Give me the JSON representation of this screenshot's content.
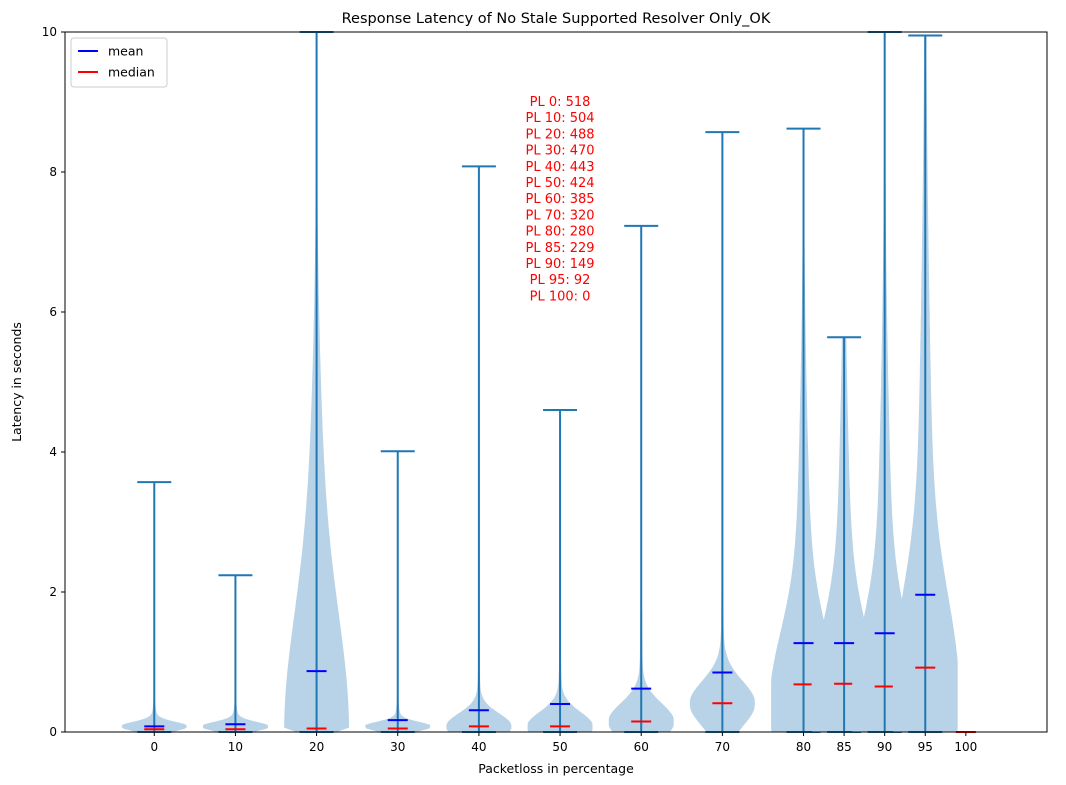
{
  "chart_data": {
    "type": "violin",
    "title": "Response Latency of No Stale Supported Resolver Only_OK",
    "xlabel": "Packetloss in percentage",
    "ylabel": "Latency in seconds",
    "ylim": [
      0,
      10
    ],
    "yticks": [
      0,
      2,
      4,
      6,
      8,
      10
    ],
    "legend": {
      "placement": "top-left",
      "entries": [
        {
          "name": "mean",
          "color": "#0000ff"
        },
        {
          "name": "median",
          "color": "#ff0000"
        }
      ]
    },
    "colors": {
      "body": "#b8d3e7",
      "stem": "#1f77b4",
      "mean": "#0000ff",
      "median": "#ff0000"
    },
    "groups": [
      {
        "label": "0",
        "x": 0,
        "min": 0.0,
        "max": 3.57,
        "mean": 0.08,
        "median": 0.04,
        "width": 0.8,
        "shape": "bulb"
      },
      {
        "label": "10",
        "x": 10,
        "min": 0.0,
        "max": 2.24,
        "mean": 0.11,
        "median": 0.04,
        "width": 0.8,
        "shape": "bulb"
      },
      {
        "label": "20",
        "x": 20,
        "min": 0.0,
        "max": 10.0,
        "mean": 0.87,
        "median": 0.05,
        "width": 0.8,
        "shape": "tall"
      },
      {
        "label": "30",
        "x": 30,
        "min": 0.0,
        "max": 4.01,
        "mean": 0.17,
        "median": 0.05,
        "width": 0.8,
        "shape": "bulb"
      },
      {
        "label": "40",
        "x": 40,
        "min": 0.0,
        "max": 8.08,
        "mean": 0.31,
        "median": 0.08,
        "width": 0.8,
        "shape": "flare"
      },
      {
        "label": "50",
        "x": 50,
        "min": 0.0,
        "max": 4.6,
        "mean": 0.4,
        "median": 0.08,
        "width": 0.8,
        "shape": "flare"
      },
      {
        "label": "60",
        "x": 60,
        "min": 0.0,
        "max": 7.23,
        "mean": 0.62,
        "median": 0.15,
        "width": 0.8,
        "shape": "flare"
      },
      {
        "label": "70",
        "x": 70,
        "min": 0.0,
        "max": 8.57,
        "mean": 0.85,
        "median": 0.41,
        "width": 0.8,
        "shape": "flare"
      },
      {
        "label": "80",
        "x": 80,
        "min": 0.0,
        "max": 8.62,
        "mean": 1.27,
        "median": 0.68,
        "width": 0.8,
        "shape": "broad"
      },
      {
        "label": "85",
        "x": 85,
        "min": 0.0,
        "max": 5.64,
        "mean": 1.27,
        "median": 0.69,
        "width": 0.8,
        "shape": "broad"
      },
      {
        "label": "90",
        "x": 90,
        "min": 0.0,
        "max": 10.0,
        "mean": 1.41,
        "median": 0.65,
        "width": 0.8,
        "shape": "broad"
      },
      {
        "label": "95",
        "x": 95,
        "min": 0.0,
        "max": 9.95,
        "mean": 1.96,
        "median": 0.92,
        "width": 0.8,
        "shape": "broad"
      },
      {
        "label": "100",
        "x": 100,
        "min": 0.0,
        "max": 0.0,
        "mean": null,
        "median": 0.0,
        "width": 0.8,
        "shape": "none"
      }
    ],
    "annotation": [
      "PL 0: 518",
      "PL 10: 504",
      "PL 20: 488",
      "PL 30: 470",
      "PL 40: 443",
      "PL 50: 424",
      "PL 60: 385",
      "PL 70: 320",
      "PL 80: 280",
      "PL 85: 229",
      "PL 90: 149",
      "PL 95: 92",
      "PL 100: 0"
    ],
    "annotation_anchor": {
      "x": 50,
      "y": 9.0
    }
  }
}
